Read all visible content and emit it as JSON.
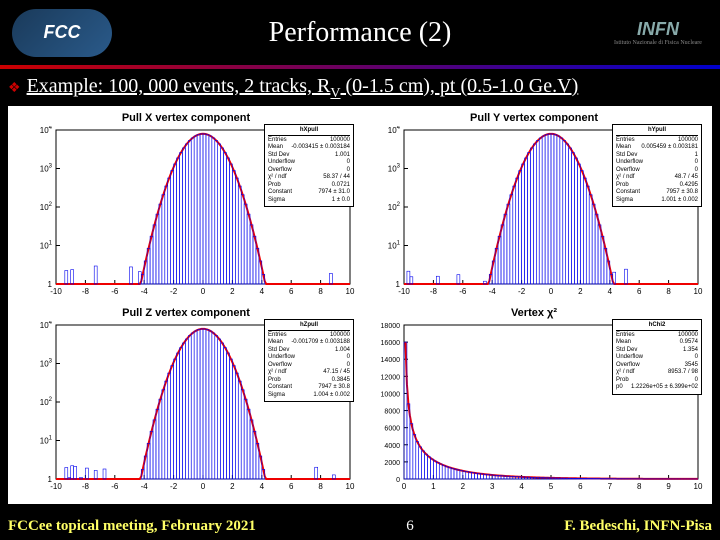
{
  "header": {
    "title": "Performance (2)",
    "logo_fcc": "FCC",
    "logo_infn": "INFN",
    "logo_infn_sub": "Istituto Nazionale di Fisica Nucleare"
  },
  "example": {
    "bullet": "❖",
    "text_pre": "Example: 100, 000 events, 2 tracks, R",
    "text_sub": "V",
    "text_post": " (0-1.5 cm), pt (0.5-1.0 Ge.V)"
  },
  "panels": [
    {
      "title": "Pull X vertex component",
      "type": "histogram-gauss-log",
      "hname": "hXpull",
      "stats": {
        "Entries": "100000",
        "Mean": "-0.003415 ± 0.003184",
        "Std Dev": "1.001",
        "Underflow": "0",
        "Overflow": "0",
        "χ² / ndf": "58.37 / 44",
        "Prob": "0.0721",
        "Constant": "7974 ± 31.0",
        "Sigma": "1 ± 0.0"
      },
      "xlim": [
        -10,
        10
      ],
      "ylim": [
        1,
        10000
      ],
      "log": true,
      "mu": 0,
      "sigma": 1,
      "amp": 7974,
      "colors": {
        "hist": "#0000ee",
        "fit": "#ee0000",
        "axis": "#000000",
        "grid": "#000000"
      }
    },
    {
      "title": "Pull Y vertex component",
      "type": "histogram-gauss-log",
      "hname": "hYpull",
      "stats": {
        "Entries": "100000",
        "Mean": "0.005459 ± 0.003181",
        "Std Dev": "1",
        "Underflow": "0",
        "Overflow": "0",
        "χ² / ndf": "48.7 / 45",
        "Prob": "0.4295",
        "Constant": "7957 ± 30.8",
        "Sigma": "1.001 ± 0.002"
      },
      "xlim": [
        -10,
        10
      ],
      "ylim": [
        1,
        10000
      ],
      "log": true,
      "mu": 0,
      "sigma": 1,
      "amp": 7957,
      "colors": {
        "hist": "#0000ee",
        "fit": "#ee0000",
        "axis": "#000000",
        "grid": "#000000"
      }
    },
    {
      "title": "Pull Z vertex component",
      "type": "histogram-gauss-log",
      "hname": "hZpull",
      "stats": {
        "Entries": "100000",
        "Mean": "-0.001709 ± 0.003188",
        "Std Dev": "1.004",
        "Underflow": "0",
        "Overflow": "0",
        "χ² / ndf": "47.15 / 45",
        "Prob": "0.3845",
        "Constant": "7947 ± 30.8",
        "Sigma": "1.004 ± 0.002"
      },
      "xlim": [
        -10,
        10
      ],
      "ylim": [
        1,
        10000
      ],
      "log": true,
      "mu": 0,
      "sigma": 1,
      "amp": 7947,
      "colors": {
        "hist": "#0000ee",
        "fit": "#ee0000",
        "axis": "#000000",
        "grid": "#000000"
      }
    },
    {
      "title": "Vertex χ²",
      "type": "histogram-chi2",
      "hname": "hChi2",
      "stats": {
        "Entries": "100000",
        "Mean": "0.9574",
        "Std Dev": "1.354",
        "Underflow": "0",
        "Overflow": "3545",
        "χ² / ndf": "8953.7 / 98",
        "Prob": "0",
        "p0": "1.2226e+05 ± 6.399e+02"
      },
      "xlim": [
        0,
        10
      ],
      "ylim": [
        0,
        18000
      ],
      "ytick_step": 2000,
      "dof": 1,
      "amp": 16000,
      "colors": {
        "hist": "#0000ee",
        "fit": "#ee0000",
        "axis": "#000000"
      }
    }
  ],
  "footer": {
    "left": "FCCee topical meeting, February 2021",
    "page": "6",
    "right": "F. Bedeschi, INFN-Pisa"
  },
  "style": {
    "bg": "#000000",
    "title_color": "#ffffff",
    "example_color": "#ffffff",
    "footer_color": "#ffff66",
    "divider_from": "#cc0000",
    "divider_to": "#0000cc"
  }
}
